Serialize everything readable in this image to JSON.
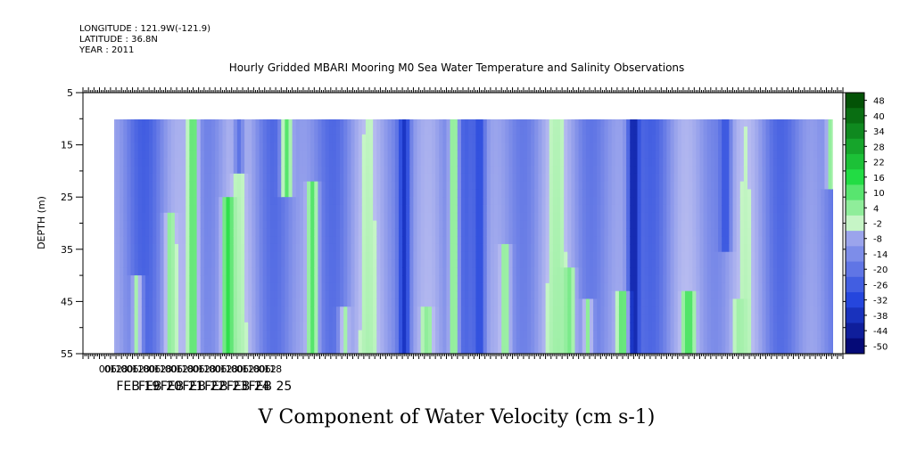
{
  "header": {
    "longitude": "LONGITUDE : 121.9W(-121.9)",
    "latitude": "LATITUDE : 36.8N",
    "year": "YEAR : 2011"
  },
  "chart_data": {
    "type": "heatmap",
    "title": "Hourly Gridded MBARI Mooring M0 Sea Water Temperature and Salinity Observations",
    "xlabel": "V Component of Water Velocity (cm s-1)",
    "ylabel": "DEPTH (m)",
    "y_ticks": [
      5,
      15,
      25,
      35,
      45,
      55
    ],
    "y_range": [
      5,
      55
    ],
    "y_inverted": true,
    "data_depth_range": [
      10,
      55
    ],
    "x_hour_ticks": [
      "00",
      "06",
      "12",
      "18",
      "00",
      "06",
      "12",
      "18",
      "00",
      "06",
      "12",
      "18",
      "00",
      "06",
      "12",
      "18",
      "00",
      "06",
      "12",
      "18",
      "00",
      "06",
      "12",
      "18",
      "00",
      "06",
      "12",
      "18",
      "00",
      "06",
      "12",
      "18"
    ],
    "x_date_labels": [
      "FEB 19",
      "FEB 20",
      "FEB 21",
      "FEB 22",
      "FEB 23",
      "FEB 24",
      "FEB 25"
    ],
    "x_range_hours": [
      -48,
      780
    ],
    "data_x_range_hours": [
      -24,
      772
    ],
    "colorbar": {
      "labels": [
        "48",
        "40",
        "34",
        "28",
        "22",
        "16",
        "10",
        "4",
        "-2",
        "-8",
        "-14",
        "-20",
        "-26",
        "-32",
        "-38",
        "-44",
        "-50"
      ],
      "min": -50,
      "max": 50,
      "negative_color_dark": "#000066",
      "negative_color_mid": "#2244dd",
      "negative_color_light": "#b8bcf0",
      "positive_color_light": "#c6f5c6",
      "positive_color_mid": "#22dd44",
      "positive_color_dark": "#004400"
    },
    "features": [
      {
        "center_h": 9,
        "depth_from": 40,
        "depth_to": 55,
        "value": 4
      },
      {
        "center_h": 45,
        "depth_from": 27,
        "depth_to": 55,
        "value": 6
      },
      {
        "center_h": 70,
        "depth_from": 10,
        "depth_to": 55,
        "value": 12
      },
      {
        "center_h": 108,
        "depth_from": 24,
        "depth_to": 55,
        "value": 16
      },
      {
        "center_h": 120,
        "depth_from": 10,
        "depth_to": 20,
        "value": -18
      },
      {
        "center_h": 172,
        "depth_from": 10,
        "depth_to": 24,
        "value": 12
      },
      {
        "center_h": 200,
        "depth_from": 22,
        "depth_to": 55,
        "value": 12
      },
      {
        "center_h": 235,
        "depth_from": 45,
        "depth_to": 55,
        "value": 4
      },
      {
        "center_h": 300,
        "depth_from": 10,
        "depth_to": 55,
        "value": -34
      },
      {
        "center_h": 325,
        "depth_from": 45,
        "depth_to": 55,
        "value": 6
      },
      {
        "center_h": 354,
        "depth_from": 10,
        "depth_to": 55,
        "value": 8
      },
      {
        "center_h": 382,
        "depth_from": 10,
        "depth_to": 55,
        "value": -28
      },
      {
        "center_h": 410,
        "depth_from": 33,
        "depth_to": 55,
        "value": 6
      },
      {
        "center_h": 480,
        "depth_from": 38,
        "depth_to": 55,
        "value": 8
      },
      {
        "center_h": 500,
        "depth_from": 44,
        "depth_to": 55,
        "value": 6
      },
      {
        "center_h": 550,
        "depth_from": 10,
        "depth_to": 55,
        "value": -40
      },
      {
        "center_h": 538,
        "depth_from": 42,
        "depth_to": 55,
        "value": 12
      },
      {
        "center_h": 610,
        "depth_from": 43,
        "depth_to": 55,
        "value": 14
      },
      {
        "center_h": 650,
        "depth_from": 10,
        "depth_to": 35,
        "value": -26
      },
      {
        "center_h": 665,
        "depth_from": 44,
        "depth_to": 55,
        "value": 4
      },
      {
        "center_h": 765,
        "depth_from": 10,
        "depth_to": 22,
        "value": 6
      }
    ]
  }
}
